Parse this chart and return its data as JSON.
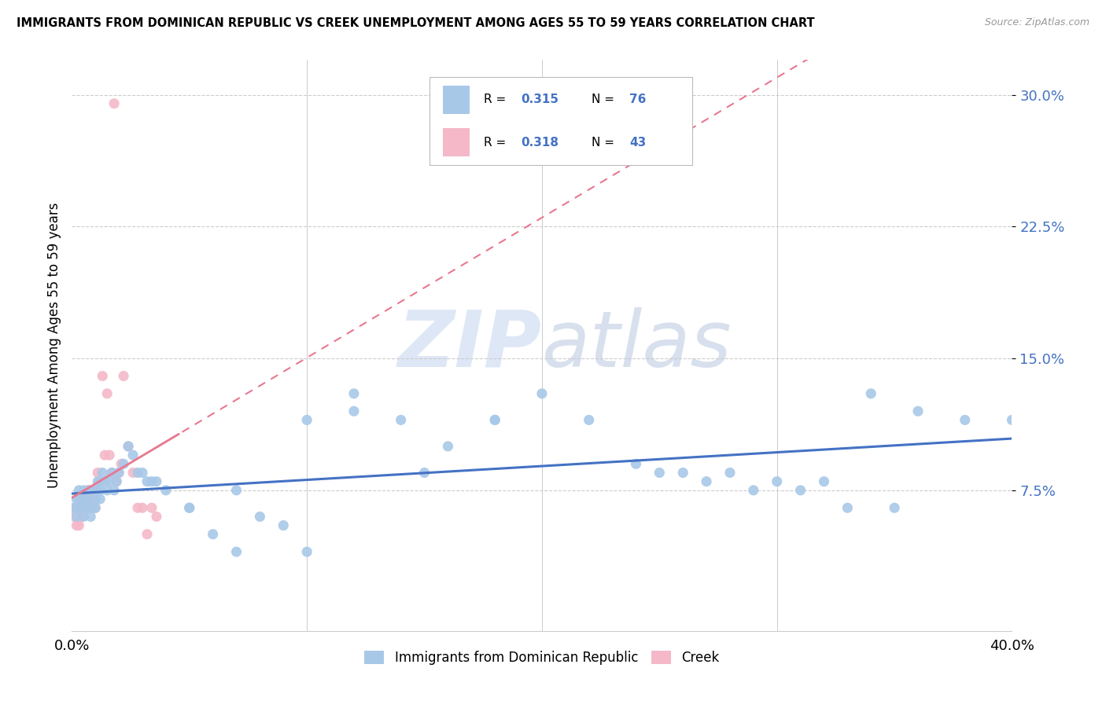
{
  "title": "IMMIGRANTS FROM DOMINICAN REPUBLIC VS CREEK UNEMPLOYMENT AMONG AGES 55 TO 59 YEARS CORRELATION CHART",
  "source": "Source: ZipAtlas.com",
  "ylabel": "Unemployment Among Ages 55 to 59 years",
  "ytick_values": [
    0.075,
    0.15,
    0.225,
    0.3
  ],
  "ytick_labels": [
    "7.5%",
    "15.0%",
    "22.5%",
    "30.0%"
  ],
  "xlim": [
    0.0,
    0.4
  ],
  "ylim": [
    -0.005,
    0.32
  ],
  "color_blue": "#a8c8e8",
  "color_pink": "#f4b8c8",
  "color_blue_text": "#4472c4",
  "line_blue": "#4472c4",
  "line_pink": "#e87890",
  "background": "#ffffff",
  "watermark_zip": "ZIP",
  "watermark_atlas": "atlas",
  "legend_label_blue": "Immigrants from Dominican Republic",
  "legend_label_pink": "Creek",
  "blue_x": [
    0.001,
    0.002,
    0.002,
    0.003,
    0.003,
    0.003,
    0.004,
    0.004,
    0.005,
    0.005,
    0.005,
    0.006,
    0.006,
    0.007,
    0.007,
    0.007,
    0.008,
    0.008,
    0.009,
    0.009,
    0.01,
    0.01,
    0.011,
    0.011,
    0.012,
    0.012,
    0.013,
    0.014,
    0.015,
    0.016,
    0.017,
    0.018,
    0.019,
    0.02,
    0.022,
    0.024,
    0.026,
    0.028,
    0.03,
    0.032,
    0.034,
    0.036,
    0.04,
    0.05,
    0.06,
    0.07,
    0.08,
    0.09,
    0.1,
    0.12,
    0.14,
    0.16,
    0.18,
    0.2,
    0.22,
    0.24,
    0.26,
    0.28,
    0.3,
    0.32,
    0.34,
    0.36,
    0.38,
    0.4,
    0.25,
    0.27,
    0.29,
    0.31,
    0.33,
    0.35,
    0.1,
    0.12,
    0.15,
    0.18,
    0.05,
    0.07
  ],
  "blue_y": [
    0.065,
    0.07,
    0.06,
    0.065,
    0.07,
    0.075,
    0.065,
    0.07,
    0.06,
    0.065,
    0.075,
    0.065,
    0.07,
    0.065,
    0.07,
    0.075,
    0.065,
    0.06,
    0.065,
    0.075,
    0.07,
    0.065,
    0.075,
    0.08,
    0.07,
    0.075,
    0.085,
    0.08,
    0.075,
    0.08,
    0.085,
    0.075,
    0.08,
    0.085,
    0.09,
    0.1,
    0.095,
    0.085,
    0.085,
    0.08,
    0.08,
    0.08,
    0.075,
    0.065,
    0.05,
    0.04,
    0.06,
    0.055,
    0.04,
    0.12,
    0.115,
    0.1,
    0.115,
    0.13,
    0.115,
    0.09,
    0.085,
    0.085,
    0.08,
    0.08,
    0.13,
    0.12,
    0.115,
    0.115,
    0.085,
    0.08,
    0.075,
    0.075,
    0.065,
    0.065,
    0.115,
    0.13,
    0.085,
    0.115,
    0.065,
    0.075
  ],
  "pink_x": [
    0.001,
    0.001,
    0.002,
    0.002,
    0.003,
    0.003,
    0.003,
    0.004,
    0.004,
    0.004,
    0.005,
    0.005,
    0.005,
    0.006,
    0.006,
    0.007,
    0.007,
    0.007,
    0.008,
    0.008,
    0.009,
    0.009,
    0.01,
    0.01,
    0.011,
    0.012,
    0.013,
    0.014,
    0.015,
    0.016,
    0.017,
    0.018,
    0.019,
    0.02,
    0.021,
    0.022,
    0.024,
    0.026,
    0.028,
    0.03,
    0.032,
    0.034,
    0.036
  ],
  "pink_y": [
    0.06,
    0.065,
    0.055,
    0.065,
    0.06,
    0.065,
    0.055,
    0.07,
    0.065,
    0.06,
    0.065,
    0.07,
    0.065,
    0.065,
    0.07,
    0.07,
    0.075,
    0.065,
    0.075,
    0.065,
    0.07,
    0.065,
    0.075,
    0.065,
    0.085,
    0.08,
    0.14,
    0.095,
    0.13,
    0.095,
    0.085,
    0.295,
    0.08,
    0.085,
    0.09,
    0.14,
    0.1,
    0.085,
    0.065,
    0.065,
    0.05,
    0.065,
    0.06
  ]
}
